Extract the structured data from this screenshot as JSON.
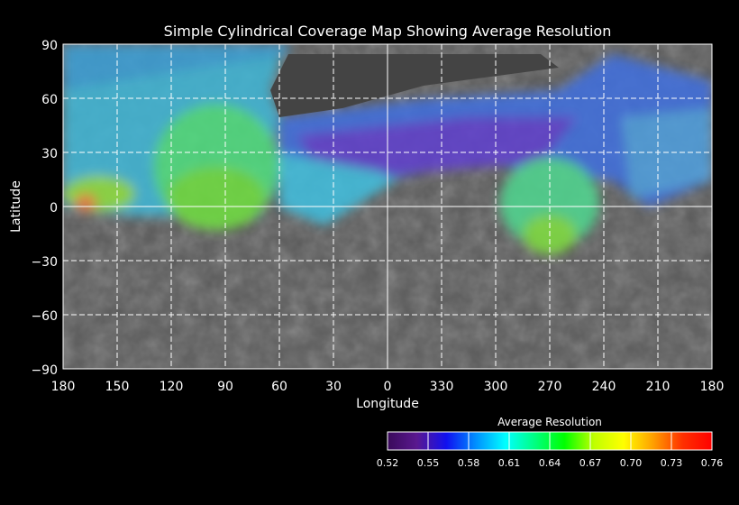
{
  "chart_data": {
    "type": "map",
    "title": "Simple Cylindrical Coverage Map Showing Average Resolution",
    "xlabel": "Longitude",
    "ylabel": "Latitude",
    "x_ticks": [
      "180",
      "150",
      "120",
      "90",
      "60",
      "30",
      "0",
      "330",
      "300",
      "270",
      "240",
      "210",
      "180"
    ],
    "y_ticks": [
      "90",
      "60",
      "30",
      "0",
      "−30",
      "−60",
      "−90"
    ],
    "ylim": [
      -90,
      90
    ],
    "grid": true,
    "colorbar": {
      "title": "Average Resolution",
      "ticks": [
        "0.52",
        "0.55",
        "0.58",
        "0.61",
        "0.64",
        "0.67",
        "0.70",
        "0.73",
        "0.76"
      ],
      "range": [
        0.52,
        0.76
      ],
      "colors": [
        "#3a0a5a",
        "#5a1890",
        "#1010f0",
        "#0090ff",
        "#00ffff",
        "#00ff80",
        "#00ff00",
        "#c0ff00",
        "#ffff00",
        "#ffa000",
        "#ff3000",
        "#ff0000"
      ]
    },
    "colors": {
      "background": "#000000",
      "basemap": "#5a5a5a",
      "grid": "#ffffff"
    }
  }
}
